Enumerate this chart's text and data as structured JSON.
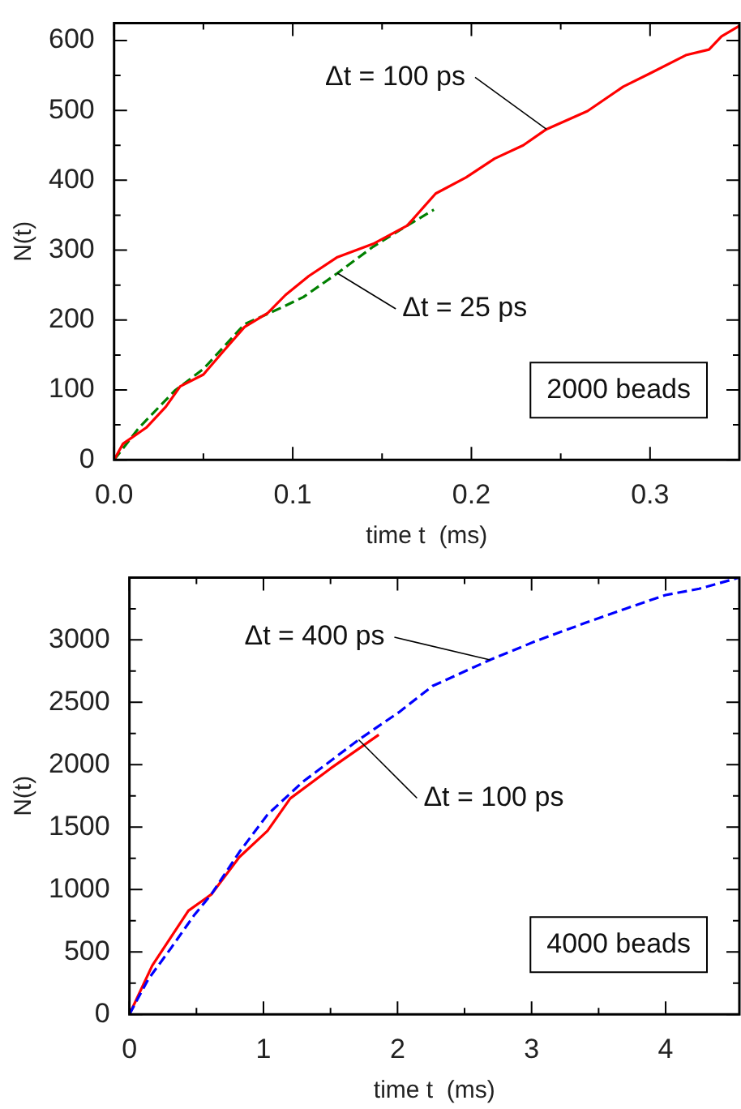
{
  "chart_data": [
    {
      "type": "line",
      "xlabel": "time t  (ms)",
      "ylabel": "N(t)",
      "xlim": [
        0,
        0.35
      ],
      "ylim": [
        0,
        625
      ],
      "xticks": [
        {
          "value": 0,
          "label": "0.0"
        },
        {
          "value": 0.05,
          "label": null
        },
        0.1,
        {
          "value": 0.15,
          "label": null
        },
        0.2,
        {
          "value": 0.25,
          "label": null
        },
        0.3
      ],
      "yticks": [
        0,
        {
          "value": 50,
          "label": null
        },
        100,
        {
          "value": 150,
          "label": null
        },
        200,
        {
          "value": 250,
          "label": null
        },
        300,
        {
          "value": 350,
          "label": null
        },
        400,
        {
          "value": 450,
          "label": null
        },
        500,
        {
          "value": 550,
          "label": null
        },
        600
      ],
      "grid": false,
      "legend": false,
      "marker": "none",
      "series": [
        {
          "color": "#ff0000",
          "line_style": "solid",
          "x": [
            0,
            0.005,
            0.018,
            0.029,
            0.037,
            0.05,
            0.06,
            0.073,
            0.086,
            0.096,
            0.109,
            0.125,
            0.145,
            0.164,
            0.18,
            0.197,
            0.213,
            0.229,
            0.242,
            0.265,
            0.285,
            0.3,
            0.32,
            0.333,
            0.34,
            0.35
          ],
          "values": [
            0,
            23,
            46,
            76,
            105,
            122,
            152,
            190,
            210,
            236,
            263,
            290,
            309,
            335,
            381,
            404,
            431,
            450,
            473,
            499,
            534,
            553,
            579,
            587,
            606,
            621
          ]
        },
        {
          "color": "#008000",
          "line_style": "dashed",
          "x": [
            0,
            0.014,
            0.034,
            0.05,
            0.073,
            0.093,
            0.106,
            0.125,
            0.145,
            0.164,
            0.179
          ],
          "values": [
            0,
            46,
            99,
            130,
            194,
            217,
            233,
            267,
            305,
            335,
            358
          ]
        }
      ],
      "annotations": [
        {
          "text": "Δt = 100 ps",
          "x": 0.242,
          "y": 473
        },
        {
          "text": "Δt = 25 ps",
          "x": 0.125,
          "y": 267
        },
        "2000 beads"
      ]
    },
    {
      "type": "line",
      "xlabel": "time t  (ms)",
      "ylabel": "N(t)",
      "xlim": [
        0,
        4.55
      ],
      "ylim": [
        0,
        3500
      ],
      "xticks": [
        0,
        {
          "value": 0.5,
          "label": null
        },
        1,
        {
          "value": 1.5,
          "label": null
        },
        2,
        {
          "value": 2.5,
          "label": null
        },
        3,
        {
          "value": 3.5,
          "label": null
        },
        4
      ],
      "yticks": [
        0,
        {
          "value": 250,
          "label": null
        },
        500,
        {
          "value": 750,
          "label": null
        },
        1000,
        {
          "value": 1250,
          "label": null
        },
        1500,
        {
          "value": 1750,
          "label": null
        },
        2000,
        {
          "value": 2250,
          "label": null
        },
        2500,
        {
          "value": 2750,
          "label": null
        },
        3000,
        {
          "value": 3250,
          "label": null
        }
      ],
      "grid": false,
      "legend": false,
      "marker": "none",
      "series": [
        {
          "color": "#0000ff",
          "line_style": "dashed",
          "x": [
            0,
            0.14,
            0.31,
            0.48,
            0.61,
            0.82,
            1.03,
            1.29,
            1.5,
            1.71,
            2.01,
            2.26,
            2.69,
            3.03,
            3.41,
            3.7,
            4.0,
            4.25,
            4.55
          ],
          "values": [
            0,
            280,
            530,
            790,
            960,
            1300,
            1600,
            1860,
            2030,
            2200,
            2420,
            2630,
            2840,
            2990,
            3140,
            3250,
            3360,
            3410,
            3500
          ]
        },
        {
          "color": "#ff0000",
          "line_style": "solid",
          "x": [
            0,
            0.17,
            0.44,
            0.61,
            0.82,
            1.03,
            1.2,
            1.5,
            1.86
          ],
          "values": [
            0,
            390,
            830,
            960,
            1260,
            1470,
            1730,
            1970,
            2240
          ]
        }
      ],
      "annotations": [
        {
          "text": "Δt = 400 ps",
          "x": 2.69,
          "y": 2840
        },
        {
          "text": "Δt = 100 ps",
          "x": 1.71,
          "y": 2200
        },
        "4000 beads"
      ]
    }
  ]
}
